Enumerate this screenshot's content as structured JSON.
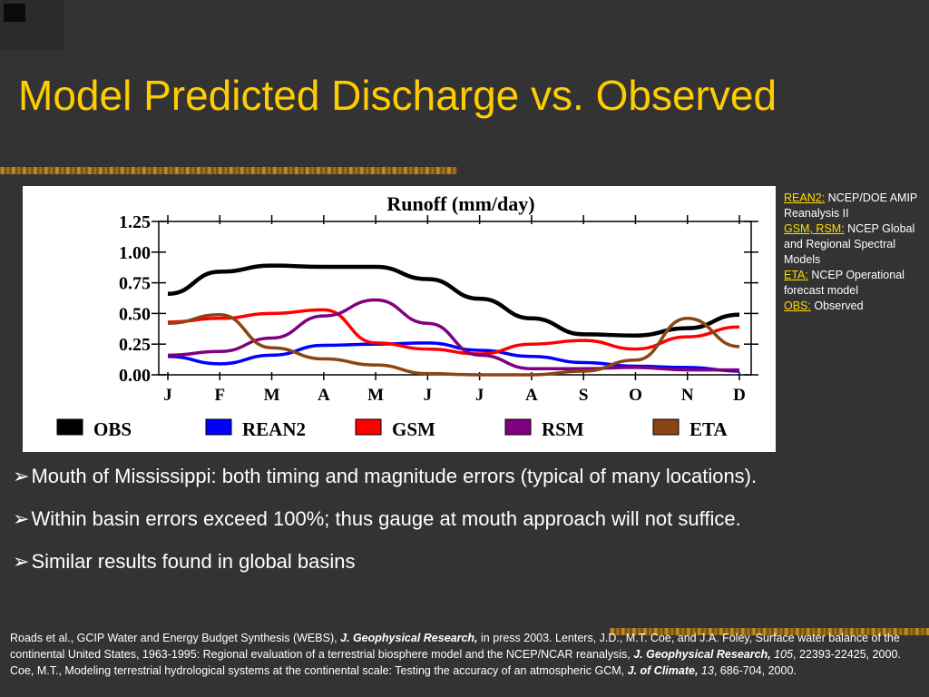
{
  "slide": {
    "title": "Model Predicted Discharge vs. Observed"
  },
  "colors": {
    "background": "#333333",
    "title": "#ffcc00",
    "OBS": "#000000",
    "REAN2": "#0000ff",
    "GSM": "#ff0000",
    "RSM": "#800080",
    "ETA": "#8b4513"
  },
  "side_notes": [
    {
      "label": "REAN2:",
      "text": "NCEP/DOE AMIP Reanalysis II"
    },
    {
      "label": "GSM, RSM:",
      "text": "NCEP Global and Regional Spectral Models"
    },
    {
      "label": "ETA:",
      "text": "NCEP Operational forecast model"
    },
    {
      "label": "OBS:",
      "text": "Observed"
    }
  ],
  "bullets": [
    "Mouth of Mississippi: both timing and magnitude errors (typical of many locations).",
    "Within basin errors exceed 100%; thus gauge at mouth approach will not suffice.",
    "Similar results found in global basins"
  ],
  "references": {
    "r1_pre": "Roads et al., GCIP Water and Energy Budget Synthesis (WEBS), ",
    "r1_journal": "J. Geophysical Research,",
    "r1_post": " in press 2003.  Lenters, J.D., M.T. Coe, and J.A. Foley, Surface water balance of the continental United States, 1963-1995: Regional evaluation of a terrestrial biosphere model and the NCEP/NCAR reanalysis, ",
    "r2_journal": "J. Geophysical Research,",
    "r2_vol": "105",
    "r2_post": ", 22393-22425, 2000.  Coe, M.T., Modeling terrestrial hydrological systems at the continental scale: Testing the accuracy of an atmospheric GCM, ",
    "r3_journal": "J. of Climate,",
    "r3_vol": "13",
    "r3_post": ", 686-704, 2000."
  },
  "chart_data": {
    "type": "line",
    "title": "Runoff (mm/day)",
    "xlabel": "",
    "ylabel": "",
    "categories": [
      "J",
      "F",
      "M",
      "A",
      "M",
      "J",
      "J",
      "A",
      "S",
      "O",
      "N",
      "D"
    ],
    "yticks": [
      "0.00",
      "0.25",
      "0.50",
      "0.75",
      "1.00",
      "1.25"
    ],
    "ylim": [
      0,
      1.25
    ],
    "grid": false,
    "legend_position": "bottom",
    "series": [
      {
        "name": "OBS",
        "color": "#000000",
        "values": [
          0.66,
          0.84,
          0.89,
          0.88,
          0.88,
          0.78,
          0.62,
          0.46,
          0.33,
          0.32,
          0.38,
          0.49
        ]
      },
      {
        "name": "REAN2",
        "color": "#0000ff",
        "values": [
          0.15,
          0.09,
          0.16,
          0.24,
          0.25,
          0.26,
          0.2,
          0.15,
          0.1,
          0.07,
          0.06,
          0.03
        ]
      },
      {
        "name": "GSM",
        "color": "#ff0000",
        "values": [
          0.43,
          0.46,
          0.5,
          0.53,
          0.26,
          0.21,
          0.17,
          0.25,
          0.28,
          0.21,
          0.31,
          0.39
        ]
      },
      {
        "name": "RSM",
        "color": "#800080",
        "values": [
          0.16,
          0.19,
          0.3,
          0.48,
          0.61,
          0.42,
          0.16,
          0.05,
          0.05,
          0.06,
          0.04,
          0.04
        ]
      },
      {
        "name": "ETA",
        "color": "#8b4513",
        "values": [
          0.42,
          0.49,
          0.22,
          0.13,
          0.08,
          0.01,
          0.0,
          0.0,
          0.03,
          0.12,
          0.46,
          0.23
        ]
      }
    ]
  }
}
